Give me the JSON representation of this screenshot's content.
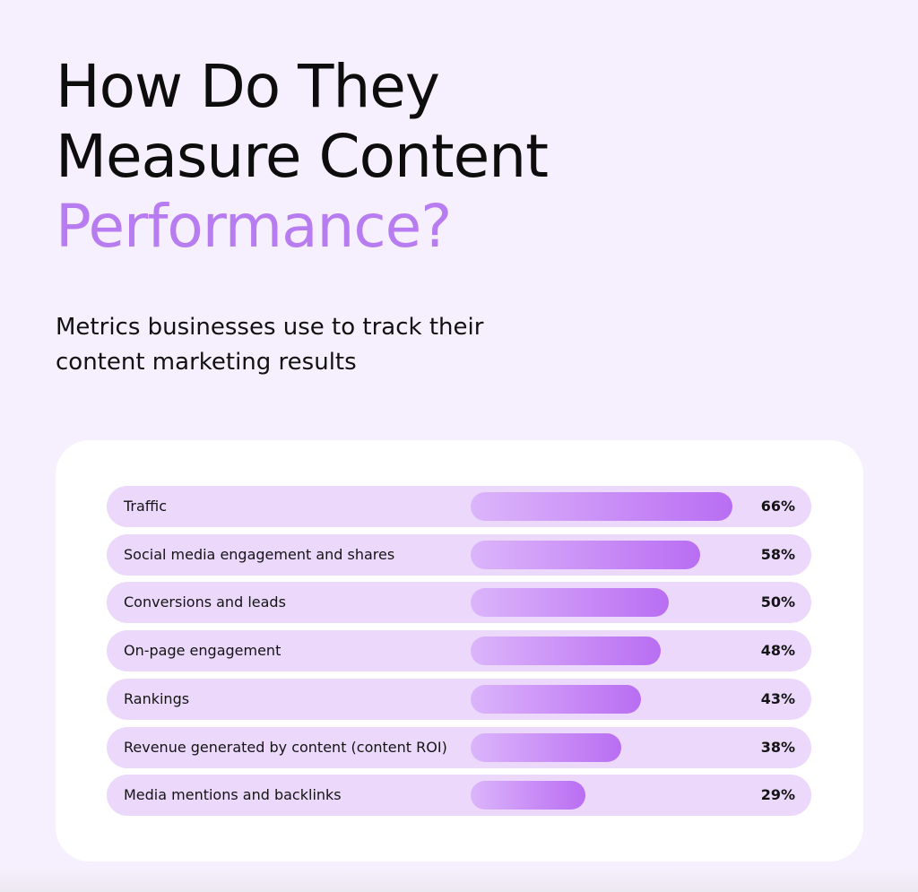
{
  "title": {
    "line1": "How Do They",
    "line2": "Measure Content",
    "line3": "Performance?"
  },
  "subtitle": {
    "line1": "Metrics businesses use to track their",
    "line2": "content marketing results"
  },
  "colors": {
    "background": "#f6effd",
    "title_accent": "#b77cf0",
    "row_background": "#ebd8fb",
    "bar_start": "#dbb5fb",
    "bar_end": "#b96ef2"
  },
  "chart_data": {
    "type": "bar",
    "orientation": "horizontal",
    "categories": [
      "Traffic",
      "Social media engagement and shares",
      "Conversions and leads",
      "On-page engagement",
      "Rankings",
      "Revenue generated by content (content ROI)",
      "Media mentions and backlinks"
    ],
    "values": [
      66,
      58,
      50,
      48,
      43,
      38,
      29
    ],
    "value_labels": [
      "66%",
      "58%",
      "50%",
      "48%",
      "43%",
      "38%",
      "29%"
    ],
    "unit": "%"
  }
}
